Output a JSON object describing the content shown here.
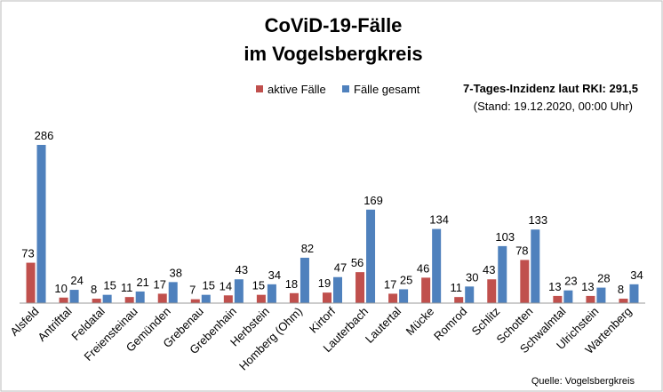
{
  "chart_data": {
    "type": "bar",
    "title": [
      "CoViD-19-Fälle",
      "im Vogelsbergkreis"
    ],
    "annotations": [
      "7-Tages-Inzidenz laut RKI: 291,5",
      "(Stand: 19.12.2020, 00:00 Uhr)"
    ],
    "source": "Quelle: Vogelsbergkreis",
    "categories": [
      "Alsfeld",
      "Antrifttal",
      "Feldatal",
      "Freiensteinau",
      "Gemünden",
      "Grebenau",
      "Grebenhain",
      "Herbstein",
      "Homberg (Ohm)",
      "Kirtorf",
      "Lauterbach",
      "Lautertal",
      "Mücke",
      "Romrod",
      "Schlitz",
      "Schotten",
      "Schwalmtal",
      "Ulrichstein",
      "Wartenberg"
    ],
    "series": [
      {
        "name": "aktive Fälle",
        "color": "#c0504d",
        "values": [
          73,
          10,
          8,
          11,
          17,
          7,
          14,
          15,
          18,
          19,
          56,
          17,
          46,
          11,
          43,
          78,
          13,
          13,
          8
        ]
      },
      {
        "name": "Fälle gesamt",
        "color": "#4f81bd",
        "values": [
          286,
          24,
          15,
          21,
          38,
          15,
          43,
          34,
          82,
          47,
          169,
          25,
          134,
          30,
          103,
          133,
          23,
          28,
          34
        ]
      }
    ]
  }
}
